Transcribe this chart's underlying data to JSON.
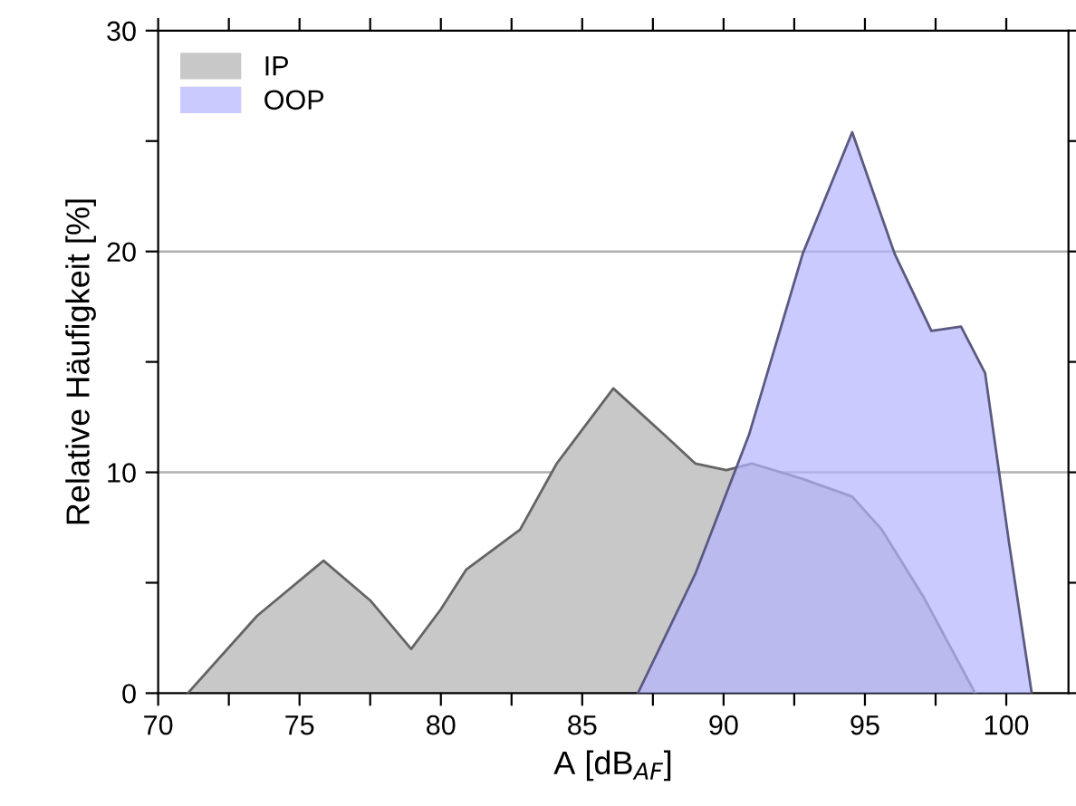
{
  "chart_data": {
    "type": "area",
    "xlabel": "A [dB$_{AF}$]",
    "ylabel": "Relative Häufigkeit [%]",
    "xlim": [
      70,
      102.2
    ],
    "ylim": [
      0,
      30
    ],
    "xticks": [
      70,
      {
        "value": 72.5,
        "label": null
      },
      75,
      {
        "value": 77.5,
        "label": null
      },
      80,
      {
        "value": 82.5,
        "label": null
      },
      85,
      {
        "value": 87.5,
        "label": null
      },
      90,
      {
        "value": 92.5,
        "label": null
      },
      95,
      {
        "value": 97.5,
        "label": null
      },
      100
    ],
    "yticks": [
      0,
      {
        "value": 5,
        "label": null
      },
      10,
      {
        "value": 15,
        "label": null
      },
      20,
      {
        "value": 25,
        "label": null
      },
      30
    ],
    "grid": "y",
    "legend": "top left",
    "series": [
      {
        "name": "IP",
        "color": "#c8c8c8",
        "x": [
          71.05,
          73.5,
          75.85,
          77.5,
          78.95,
          80.0,
          80.9,
          82.8,
          84.1,
          86.1,
          87.9,
          89.0,
          90.1,
          91.0,
          92.8,
          94.55,
          95.6,
          97.1,
          98.9
        ],
        "values": [
          0,
          3.5,
          6.0,
          4.2,
          2.0,
          3.8,
          5.6,
          7.4,
          10.4,
          13.8,
          11.7,
          10.4,
          10.1,
          10.4,
          9.7,
          8.9,
          7.4,
          4.3,
          0
        ]
      },
      {
        "name": "OOP",
        "color": "#b4b4ff",
        "x": [
          86.97,
          89.0,
          90.9,
          92.8,
          94.55,
          96.05,
          97.35,
          98.4,
          99.25,
          100.1,
          100.9
        ],
        "values": [
          0,
          5.4,
          11.7,
          19.9,
          25.4,
          19.9,
          16.4,
          16.6,
          14.5,
          6.8,
          0
        ]
      }
    ]
  }
}
